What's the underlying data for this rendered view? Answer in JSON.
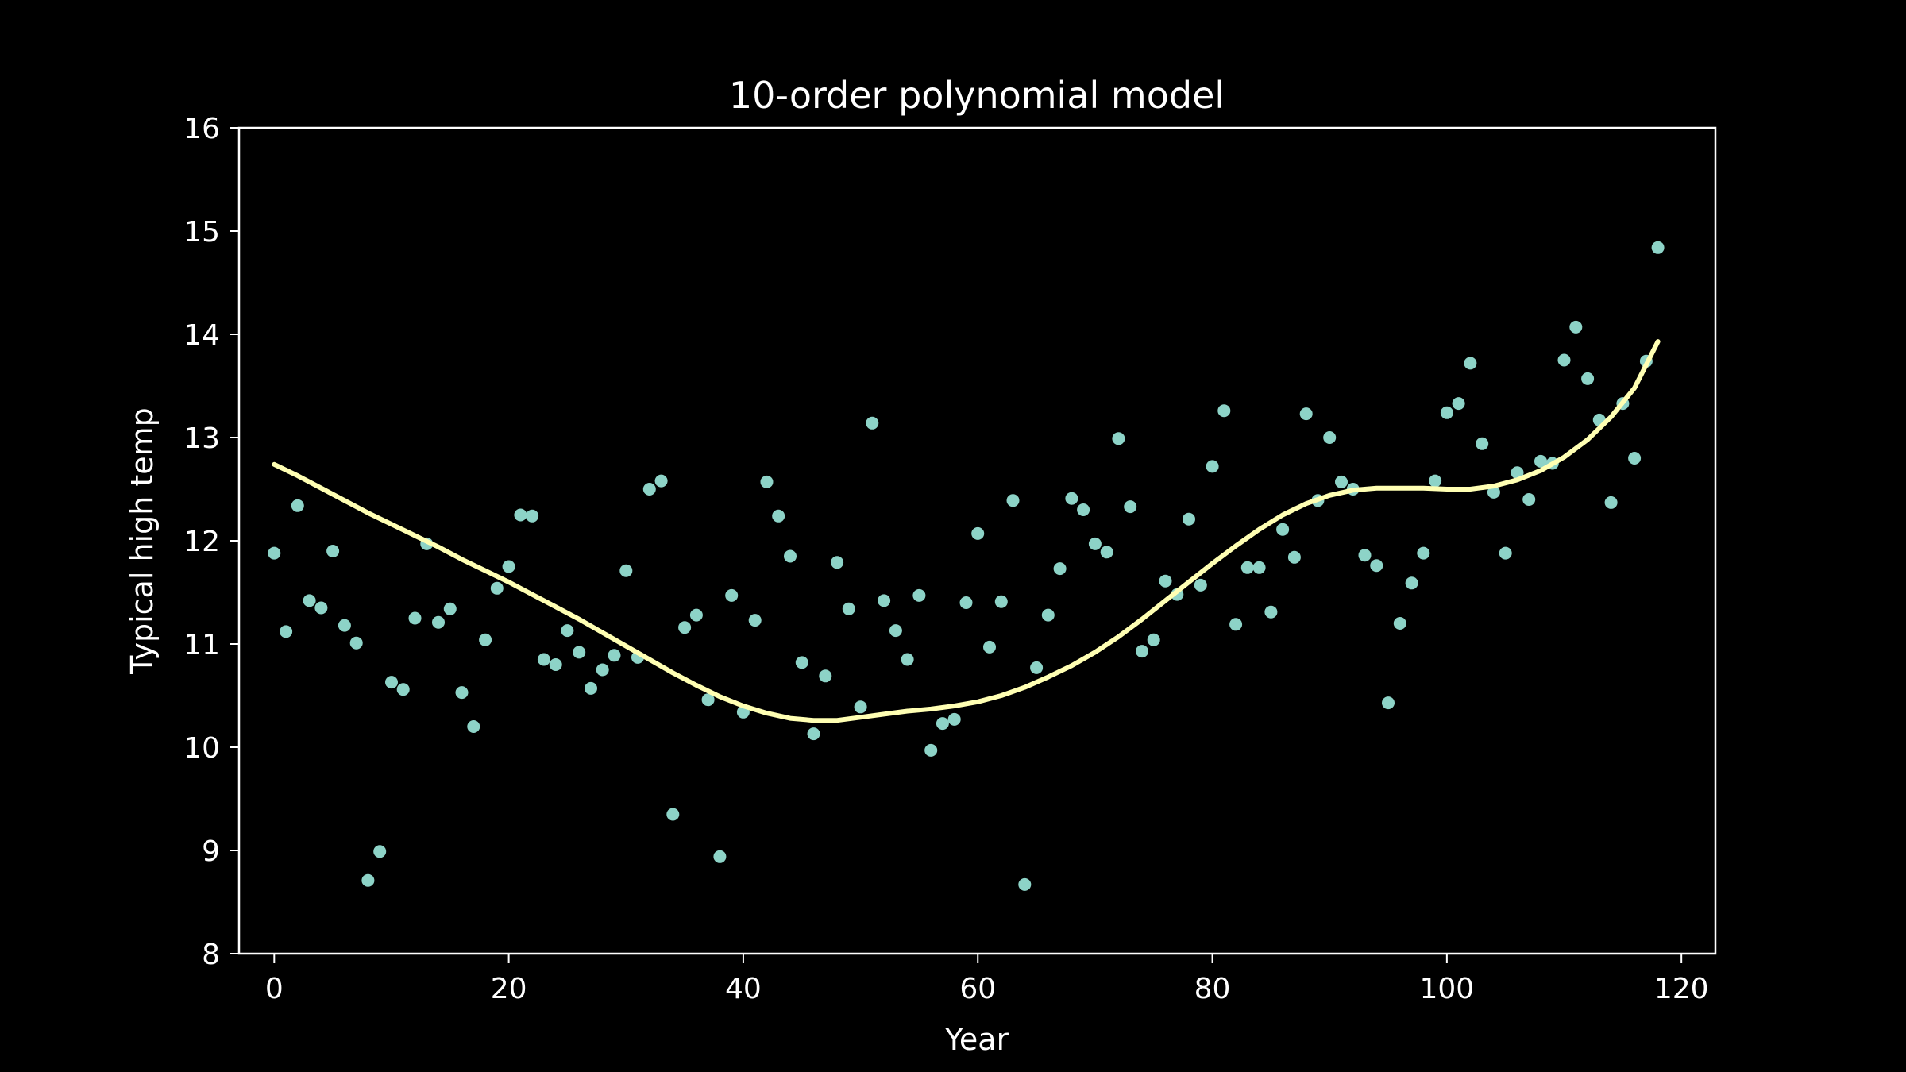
{
  "colors": {
    "background": "#000000",
    "axes": "#ffffff",
    "points": "#8dd3c7",
    "fit_line": "#ffffb3"
  },
  "chart_data": {
    "type": "scatter",
    "title": "10-order polynomial model",
    "xlabel": "Year",
    "ylabel": "Typical high temp",
    "xlim": [
      -3,
      122.9
    ],
    "ylim": [
      8,
      16
    ],
    "xticks": [
      0,
      20,
      40,
      60,
      80,
      100,
      120
    ],
    "yticks": [
      8,
      9,
      10,
      11,
      12,
      13,
      14,
      15,
      16
    ],
    "grid": false,
    "legend": "none",
    "series": [
      {
        "kind": "points",
        "x": [
          0,
          1,
          2,
          3,
          4,
          5,
          6,
          7,
          8,
          9,
          10,
          11,
          12,
          13,
          14,
          15,
          16,
          17,
          18,
          19,
          20,
          21,
          22,
          23,
          24,
          25,
          26,
          27,
          28,
          29,
          30,
          31,
          32,
          33,
          34,
          35,
          36,
          37,
          38,
          39,
          40,
          41,
          42,
          43,
          44,
          45,
          46,
          47,
          48,
          49,
          50,
          51,
          52,
          53,
          54,
          55,
          56,
          57,
          58,
          59,
          60,
          61,
          62,
          63,
          64,
          65,
          66,
          67,
          68,
          69,
          70,
          71,
          72,
          73,
          74,
          75,
          76,
          77,
          78,
          79,
          80,
          81,
          82,
          83,
          84,
          85,
          86,
          87,
          88,
          89,
          90,
          91,
          92,
          93,
          94,
          95,
          96,
          97,
          98,
          99,
          100,
          101,
          102,
          103,
          104,
          105,
          106,
          107,
          108,
          109,
          110,
          111,
          112,
          113,
          114,
          115,
          116,
          117,
          118
        ],
        "y": [
          11.88,
          11.12,
          12.34,
          11.42,
          11.35,
          11.9,
          11.18,
          11.01,
          8.71,
          8.99,
          10.63,
          10.56,
          11.25,
          11.97,
          11.21,
          11.34,
          10.53,
          10.2,
          11.04,
          11.54,
          11.75,
          12.25,
          12.24,
          10.85,
          10.8,
          11.13,
          10.92,
          10.57,
          10.75,
          10.89,
          11.71,
          10.87,
          12.5,
          12.58,
          9.35,
          11.16,
          11.28,
          10.46,
          8.94,
          11.47,
          10.34,
          11.23,
          12.57,
          12.24,
          11.85,
          10.82,
          10.13,
          10.69,
          11.79,
          11.34,
          10.39,
          13.14,
          11.42,
          11.13,
          10.85,
          11.47,
          9.97,
          10.23,
          10.27,
          11.4,
          12.07,
          10.97,
          11.41,
          12.39,
          8.67,
          10.77,
          11.28,
          11.73,
          12.41,
          12.3,
          11.97,
          11.89,
          12.99,
          12.33,
          10.93,
          11.04,
          11.61,
          11.48,
          12.21,
          11.57,
          12.72,
          13.26,
          11.19,
          11.74,
          11.74,
          11.31,
          12.11,
          11.84,
          13.23,
          12.39,
          13.0,
          12.57,
          12.5,
          11.86,
          11.76,
          10.43,
          11.2,
          11.59,
          11.88,
          12.58,
          13.24,
          13.33,
          13.72,
          12.94,
          12.47,
          11.88,
          12.66,
          12.4,
          12.77,
          12.75,
          13.75,
          14.07,
          13.57,
          13.17,
          12.37,
          13.33,
          12.8,
          13.74,
          14.84
        ]
      },
      {
        "kind": "fit_line",
        "x": [
          0,
          2,
          4,
          6,
          8,
          10,
          12,
          14,
          16,
          18,
          20,
          22,
          24,
          26,
          28,
          30,
          32,
          34,
          36,
          38,
          40,
          42,
          44,
          46,
          48,
          50,
          52,
          54,
          56,
          58,
          60,
          62,
          64,
          66,
          68,
          70,
          72,
          74,
          76,
          78,
          80,
          82,
          84,
          86,
          88,
          90,
          92,
          94,
          96,
          98,
          100,
          102,
          104,
          106,
          108,
          110,
          112,
          114,
          116,
          118
        ],
        "y": [
          12.74,
          12.63,
          12.51,
          12.39,
          12.27,
          12.16,
          12.05,
          11.94,
          11.82,
          11.71,
          11.6,
          11.48,
          11.36,
          11.24,
          11.11,
          10.98,
          10.85,
          10.72,
          10.6,
          10.49,
          10.4,
          10.33,
          10.28,
          10.26,
          10.26,
          10.29,
          10.32,
          10.35,
          10.37,
          10.4,
          10.44,
          10.5,
          10.58,
          10.68,
          10.79,
          10.92,
          11.07,
          11.24,
          11.42,
          11.6,
          11.78,
          11.95,
          12.11,
          12.25,
          12.36,
          12.44,
          12.49,
          12.51,
          12.51,
          12.51,
          12.5,
          12.5,
          12.53,
          12.59,
          12.68,
          12.81,
          12.98,
          13.2,
          13.48,
          13.93
        ]
      }
    ]
  }
}
